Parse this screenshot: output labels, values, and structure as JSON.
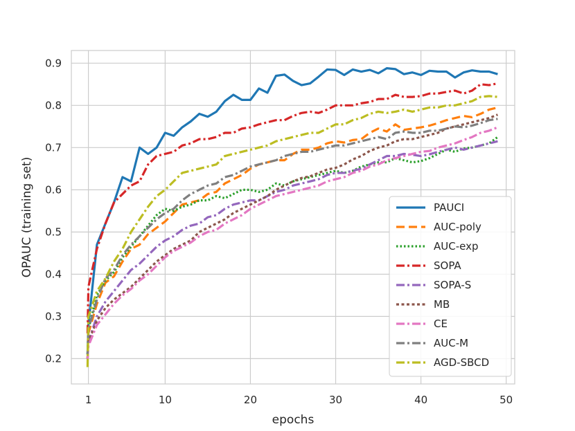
{
  "chart_data": {
    "type": "line",
    "xlabel": "epochs",
    "ylabel": "OPAUC (training set)",
    "xlim": [
      -1,
      51
    ],
    "ylim": [
      0.14,
      0.93
    ],
    "xticks": [
      1,
      10,
      20,
      30,
      40,
      50
    ],
    "yticks": [
      0.2,
      0.3,
      0.4,
      0.5,
      0.6,
      0.7,
      0.8,
      0.9
    ],
    "grid": true,
    "legend_position": "lower-right",
    "x": [
      0.9,
      1,
      2,
      3,
      4,
      5,
      6,
      7,
      8,
      9,
      10,
      11,
      12,
      13,
      14,
      15,
      16,
      17,
      18,
      19,
      20,
      21,
      22,
      23,
      24,
      25,
      26,
      27,
      28,
      29,
      30,
      31,
      32,
      33,
      34,
      35,
      36,
      37,
      38,
      39,
      40,
      41,
      42,
      43,
      44,
      45,
      46,
      47,
      48,
      49
    ],
    "series": [
      {
        "name": "PAUCI",
        "color": "#1f77b4",
        "dash": "solid",
        "values": [
          0.21,
          0.28,
          0.47,
          0.52,
          0.57,
          0.63,
          0.62,
          0.7,
          0.685,
          0.7,
          0.735,
          0.728,
          0.748,
          0.762,
          0.78,
          0.773,
          0.785,
          0.81,
          0.825,
          0.813,
          0.813,
          0.84,
          0.83,
          0.87,
          0.873,
          0.858,
          0.848,
          0.852,
          0.868,
          0.885,
          0.884,
          0.872,
          0.885,
          0.88,
          0.884,
          0.876,
          0.888,
          0.886,
          0.874,
          0.878,
          0.872,
          0.882,
          0.88,
          0.88,
          0.866,
          0.878,
          0.883,
          0.88,
          0.88,
          0.874
        ]
      },
      {
        "name": "AUC-poly",
        "color": "#ff7f0e",
        "dash": "dashed",
        "values": [
          0.2,
          0.26,
          0.33,
          0.38,
          0.395,
          0.43,
          0.46,
          0.47,
          0.495,
          0.51,
          0.525,
          0.545,
          0.565,
          0.57,
          0.575,
          0.59,
          0.595,
          0.615,
          0.625,
          0.635,
          0.65,
          0.66,
          0.665,
          0.67,
          0.67,
          0.685,
          0.695,
          0.695,
          0.7,
          0.71,
          0.715,
          0.712,
          0.718,
          0.72,
          0.735,
          0.745,
          0.738,
          0.755,
          0.742,
          0.745,
          0.748,
          0.752,
          0.758,
          0.765,
          0.77,
          0.775,
          0.772,
          0.78,
          0.79,
          0.795
        ]
      },
      {
        "name": "AUC-exp",
        "color": "#2ca02c",
        "dash": "dotted",
        "values": [
          0.21,
          0.27,
          0.35,
          0.385,
          0.405,
          0.44,
          0.465,
          0.49,
          0.515,
          0.54,
          0.555,
          0.55,
          0.56,
          0.565,
          0.575,
          0.575,
          0.585,
          0.58,
          0.59,
          0.6,
          0.6,
          0.595,
          0.6,
          0.615,
          0.61,
          0.62,
          0.625,
          0.63,
          0.635,
          0.64,
          0.645,
          0.64,
          0.645,
          0.655,
          0.66,
          0.665,
          0.665,
          0.675,
          0.67,
          0.665,
          0.668,
          0.675,
          0.685,
          0.695,
          0.69,
          0.698,
          0.7,
          0.705,
          0.71,
          0.725
        ]
      },
      {
        "name": "SOPA",
        "color": "#d62728",
        "dash": "dashdot",
        "values": [
          0.26,
          0.37,
          0.46,
          0.52,
          0.57,
          0.59,
          0.61,
          0.62,
          0.66,
          0.68,
          0.685,
          0.69,
          0.705,
          0.71,
          0.72,
          0.72,
          0.725,
          0.735,
          0.735,
          0.745,
          0.748,
          0.755,
          0.76,
          0.765,
          0.765,
          0.775,
          0.782,
          0.785,
          0.782,
          0.79,
          0.8,
          0.8,
          0.8,
          0.805,
          0.808,
          0.815,
          0.815,
          0.825,
          0.82,
          0.82,
          0.822,
          0.828,
          0.828,
          0.832,
          0.835,
          0.828,
          0.835,
          0.85,
          0.848,
          0.852
        ]
      },
      {
        "name": "SOPA-S",
        "color": "#9467bd",
        "dash": "dashdot",
        "values": [
          0.2,
          0.24,
          0.3,
          0.335,
          0.36,
          0.385,
          0.41,
          0.425,
          0.445,
          0.465,
          0.48,
          0.49,
          0.505,
          0.515,
          0.52,
          0.535,
          0.54,
          0.555,
          0.565,
          0.57,
          0.575,
          0.575,
          0.585,
          0.595,
          0.6,
          0.61,
          0.615,
          0.62,
          0.625,
          0.635,
          0.64,
          0.64,
          0.645,
          0.65,
          0.66,
          0.67,
          0.68,
          0.68,
          0.685,
          0.683,
          0.68,
          0.684,
          0.69,
          0.695,
          0.7,
          0.695,
          0.7,
          0.705,
          0.71,
          0.715
        ]
      },
      {
        "name": "MB",
        "color": "#8c564b",
        "dash": "dotted-dense",
        "values": [
          0.2,
          0.24,
          0.29,
          0.32,
          0.34,
          0.355,
          0.37,
          0.39,
          0.41,
          0.43,
          0.445,
          0.46,
          0.47,
          0.48,
          0.5,
          0.51,
          0.52,
          0.53,
          0.545,
          0.555,
          0.565,
          0.575,
          0.585,
          0.6,
          0.61,
          0.62,
          0.628,
          0.632,
          0.64,
          0.648,
          0.652,
          0.66,
          0.672,
          0.68,
          0.692,
          0.7,
          0.705,
          0.715,
          0.72,
          0.72,
          0.725,
          0.73,
          0.735,
          0.745,
          0.75,
          0.755,
          0.76,
          0.765,
          0.77,
          0.778
        ]
      },
      {
        "name": "CE",
        "color": "#e377c2",
        "dash": "dashdot",
        "values": [
          0.2,
          0.23,
          0.28,
          0.305,
          0.33,
          0.35,
          0.365,
          0.385,
          0.4,
          0.42,
          0.44,
          0.455,
          0.465,
          0.475,
          0.49,
          0.5,
          0.505,
          0.52,
          0.53,
          0.54,
          0.555,
          0.565,
          0.575,
          0.585,
          0.59,
          0.595,
          0.6,
          0.605,
          0.61,
          0.62,
          0.625,
          0.63,
          0.64,
          0.645,
          0.655,
          0.66,
          0.67,
          0.675,
          0.68,
          0.685,
          0.69,
          0.692,
          0.7,
          0.705,
          0.71,
          0.718,
          0.725,
          0.735,
          0.74,
          0.748
        ]
      },
      {
        "name": "AUC-M",
        "color": "#7f7f7f",
        "dash": "dashdot",
        "values": [
          0.21,
          0.27,
          0.34,
          0.39,
          0.41,
          0.445,
          0.47,
          0.49,
          0.51,
          0.53,
          0.545,
          0.555,
          0.575,
          0.59,
          0.6,
          0.61,
          0.615,
          0.63,
          0.635,
          0.645,
          0.655,
          0.66,
          0.665,
          0.67,
          0.68,
          0.685,
          0.69,
          0.69,
          0.695,
          0.7,
          0.705,
          0.705,
          0.71,
          0.715,
          0.72,
          0.725,
          0.72,
          0.735,
          0.738,
          0.735,
          0.735,
          0.74,
          0.74,
          0.745,
          0.75,
          0.748,
          0.752,
          0.758,
          0.765,
          0.768
        ]
      },
      {
        "name": "AGD-SBCD",
        "color": "#bcbd22",
        "dash": "dashdot",
        "values": [
          0.18,
          0.3,
          0.36,
          0.39,
          0.43,
          0.46,
          0.5,
          0.53,
          0.56,
          0.585,
          0.6,
          0.62,
          0.64,
          0.645,
          0.65,
          0.655,
          0.66,
          0.68,
          0.685,
          0.69,
          0.695,
          0.7,
          0.705,
          0.715,
          0.72,
          0.725,
          0.73,
          0.735,
          0.735,
          0.745,
          0.755,
          0.755,
          0.765,
          0.77,
          0.78,
          0.785,
          0.782,
          0.785,
          0.79,
          0.785,
          0.79,
          0.795,
          0.795,
          0.8,
          0.8,
          0.805,
          0.81,
          0.82,
          0.822,
          0.82
        ]
      }
    ]
  }
}
